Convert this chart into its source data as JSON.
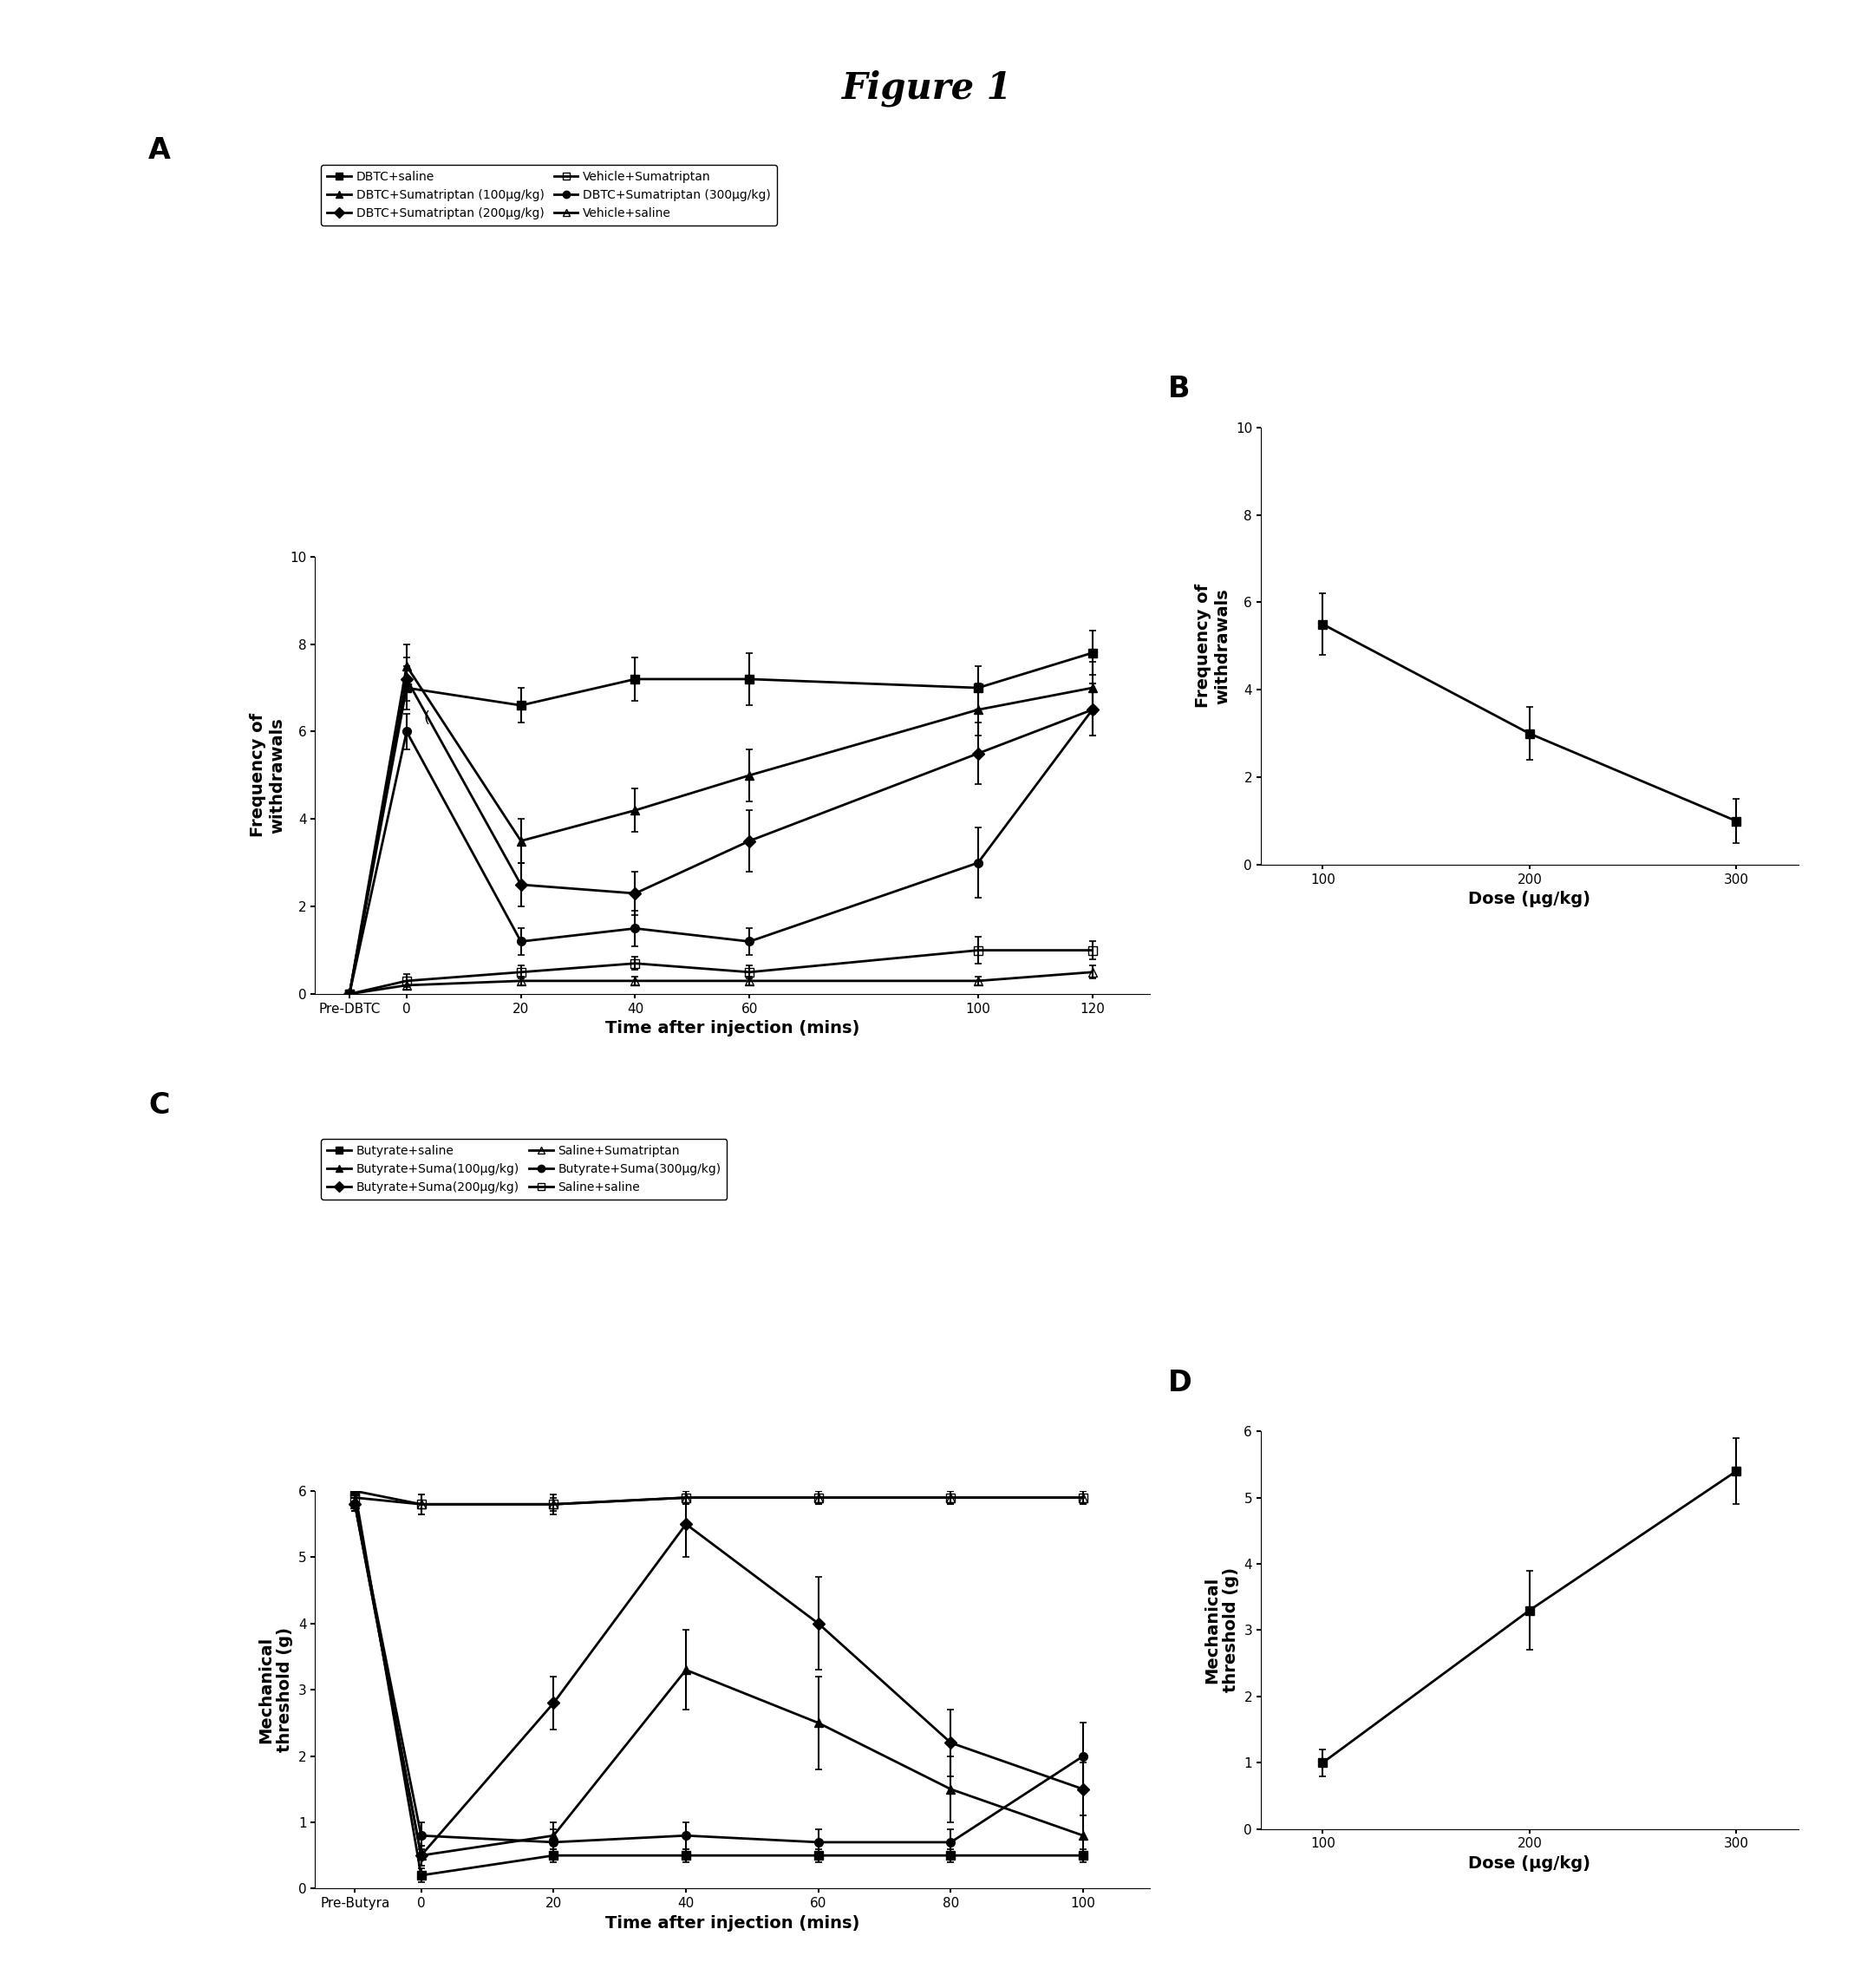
{
  "title": "Figure 1",
  "title_fontsize": 30,
  "title_fontweight": "bold",
  "panelA": {
    "label": "A",
    "xlabel": "Time after injection (mins)",
    "ylabel": "Frequency of\nwithdrawals",
    "ylim": [
      0,
      10
    ],
    "yticks": [
      0,
      2,
      4,
      6,
      8,
      10
    ],
    "xtick_labels": [
      "Pre-DBTC",
      "0",
      "20",
      "40",
      "60",
      "100",
      "120"
    ],
    "x_numeric": [
      -10,
      0,
      20,
      40,
      60,
      100,
      120
    ],
    "legend_ncol": 2,
    "legend_entries": [
      {
        "label": "DBTC+saline",
        "marker": "s",
        "fillstyle": "full"
      },
      {
        "label": "DBTC+Sumatriptan (100μg/kg)",
        "marker": "^",
        "fillstyle": "full"
      },
      {
        "label": "DBTC+Sumatriptan (200μg/kg)",
        "marker": "D",
        "fillstyle": "full"
      },
      {
        "label": "Vehicle+Sumatriptan",
        "marker": "s",
        "fillstyle": "none"
      },
      {
        "label": "DBTC+Sumatriptan (300μg/kg)",
        "marker": "o",
        "fillstyle": "full"
      },
      {
        "label": "Vehicle+saline",
        "marker": "^",
        "fillstyle": "none"
      }
    ],
    "series": [
      {
        "label": "DBTC+saline",
        "marker": "s",
        "fillstyle": "full",
        "y": [
          0,
          7.0,
          6.6,
          7.2,
          7.2,
          7.0,
          7.8
        ],
        "yerr": [
          0,
          0.5,
          0.4,
          0.5,
          0.6,
          0.5,
          0.5
        ]
      },
      {
        "label": "DBTC+Sumatriptan (100μg/kg)",
        "marker": "^",
        "fillstyle": "full",
        "y": [
          0,
          7.5,
          3.5,
          4.2,
          5.0,
          6.5,
          7.0
        ],
        "yerr": [
          0,
          0.5,
          0.5,
          0.5,
          0.6,
          0.6,
          0.6
        ]
      },
      {
        "label": "DBTC+Sumatriptan (200μg/kg)",
        "marker": "D",
        "fillstyle": "full",
        "y": [
          0,
          7.2,
          2.5,
          2.3,
          3.5,
          5.5,
          6.5
        ],
        "yerr": [
          0,
          0.5,
          0.5,
          0.5,
          0.7,
          0.7,
          0.6
        ]
      },
      {
        "label": "DBTC+Sumatriptan (300μg/kg)",
        "marker": "o",
        "fillstyle": "full",
        "y": [
          0,
          6.0,
          1.2,
          1.5,
          1.2,
          3.0,
          6.5
        ],
        "yerr": [
          0,
          0.4,
          0.3,
          0.4,
          0.3,
          0.8,
          0.6
        ]
      },
      {
        "label": "Vehicle+Sumatriptan",
        "marker": "s",
        "fillstyle": "none",
        "y": [
          0,
          0.3,
          0.5,
          0.7,
          0.5,
          1.0,
          1.0
        ],
        "yerr": [
          0,
          0.15,
          0.15,
          0.15,
          0.15,
          0.3,
          0.2
        ]
      },
      {
        "label": "Vehicle+saline",
        "marker": "^",
        "fillstyle": "none",
        "y": [
          0,
          0.2,
          0.3,
          0.3,
          0.3,
          0.3,
          0.5
        ],
        "yerr": [
          0,
          0.1,
          0.1,
          0.1,
          0.1,
          0.1,
          0.15
        ]
      }
    ]
  },
  "panelB": {
    "label": "B",
    "xlabel": "Dose (μg/kg)",
    "ylabel": "Frequency of\nwithdrawals",
    "ylim": [
      0,
      10
    ],
    "yticks": [
      0,
      2,
      4,
      6,
      8,
      10
    ],
    "xticks": [
      100,
      200,
      300
    ],
    "x": [
      100,
      200,
      300
    ],
    "y": [
      5.5,
      3.0,
      1.0
    ],
    "yerr": [
      0.7,
      0.6,
      0.5
    ],
    "marker": "s",
    "fillstyle": "full"
  },
  "panelC": {
    "label": "C",
    "xlabel": "Time after injection (mins)",
    "ylabel": "Mechanical\nthreshold (g)",
    "ylim": [
      0,
      6
    ],
    "yticks": [
      0,
      1,
      2,
      3,
      4,
      5,
      6
    ],
    "xtick_labels": [
      "Pre-Butyra",
      "0",
      "20",
      "40",
      "60",
      "80",
      "100"
    ],
    "x_numeric": [
      -10,
      0,
      20,
      40,
      60,
      80,
      100
    ],
    "legend_ncol": 2,
    "legend_entries": [
      {
        "label": "Butyrate+saline",
        "marker": "s",
        "fillstyle": "full"
      },
      {
        "label": "Butyrate+Suma(100μg/kg)",
        "marker": "^",
        "fillstyle": "full"
      },
      {
        "label": "Butyrate+Suma(200μg/kg)",
        "marker": "D",
        "fillstyle": "full"
      },
      {
        "label": "Saline+Sumatriptan",
        "marker": "^",
        "fillstyle": "none"
      },
      {
        "label": "Butyrate+Suma(300μg/kg)",
        "marker": "o",
        "fillstyle": "full"
      },
      {
        "label": "Saline+saline",
        "marker": "s",
        "fillstyle": "none"
      }
    ],
    "series": [
      {
        "label": "Butyrate+saline",
        "marker": "s",
        "fillstyle": "full",
        "y": [
          6.0,
          0.2,
          0.5,
          0.5,
          0.5,
          0.5,
          0.5
        ],
        "yerr": [
          0.1,
          0.1,
          0.1,
          0.1,
          0.1,
          0.1,
          0.1
        ]
      },
      {
        "label": "Butyrate+Suma(100μg/kg)",
        "marker": "^",
        "fillstyle": "full",
        "y": [
          5.8,
          0.5,
          0.8,
          3.3,
          2.5,
          1.5,
          0.8
        ],
        "yerr": [
          0.1,
          0.15,
          0.2,
          0.6,
          0.7,
          0.5,
          0.3
        ]
      },
      {
        "label": "Butyrate+Suma(200μg/kg)",
        "marker": "D",
        "fillstyle": "full",
        "y": [
          5.8,
          0.5,
          2.8,
          5.5,
          4.0,
          2.2,
          1.5
        ],
        "yerr": [
          0.1,
          0.15,
          0.4,
          0.5,
          0.7,
          0.5,
          0.4
        ]
      },
      {
        "label": "Butyrate+Suma(300μg/kg)",
        "marker": "o",
        "fillstyle": "full",
        "y": [
          5.8,
          0.8,
          0.7,
          0.8,
          0.7,
          0.7,
          2.0
        ],
        "yerr": [
          0.1,
          0.2,
          0.2,
          0.2,
          0.2,
          0.2,
          0.5
        ]
      },
      {
        "label": "Saline+Sumatriptan",
        "marker": "^",
        "fillstyle": "none",
        "y": [
          6.0,
          5.8,
          5.8,
          5.9,
          5.9,
          5.9,
          5.9
        ],
        "yerr": [
          0.1,
          0.15,
          0.15,
          0.1,
          0.1,
          0.1,
          0.1
        ]
      },
      {
        "label": "Saline+saline",
        "marker": "s",
        "fillstyle": "none",
        "y": [
          5.9,
          5.8,
          5.8,
          5.9,
          5.9,
          5.9,
          5.9
        ],
        "yerr": [
          0.1,
          0.15,
          0.1,
          0.1,
          0.1,
          0.1,
          0.1
        ]
      }
    ]
  },
  "panelD": {
    "label": "D",
    "xlabel": "Dose (μg/kg)",
    "ylabel": "Mechanical\nthreshold (g)",
    "ylim": [
      0,
      6
    ],
    "yticks": [
      0,
      1,
      2,
      3,
      4,
      5,
      6
    ],
    "xticks": [
      100,
      200,
      300
    ],
    "x": [
      100,
      200,
      300
    ],
    "y": [
      1.0,
      3.3,
      5.4
    ],
    "yerr": [
      0.2,
      0.6,
      0.5
    ],
    "marker": "s",
    "fillstyle": "full"
  },
  "line_color": "#000000",
  "linewidth": 2.0,
  "markersize": 7,
  "capsize": 3,
  "elinewidth": 1.5,
  "label_fontsize": 14,
  "tick_fontsize": 11,
  "legend_fontsize": 10,
  "panel_label_fontsize": 24
}
